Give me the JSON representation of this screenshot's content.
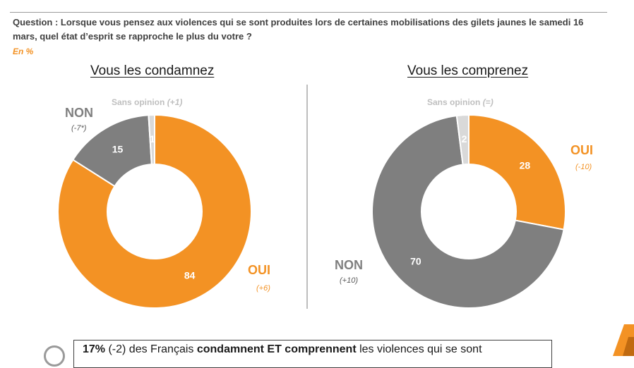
{
  "question": "Question : Lorsque vous pensez aux violences qui se sont produites lors de certaines mobilisations des gilets jaunes le samedi 16 mars, quel état d’esprit se rapproche le plus du votre ?",
  "unit": "En  %",
  "colors": {
    "oui": "#f39224",
    "non": "#7f7f7f",
    "sans_opinion": "#d9d9d9",
    "accent": "#f39224"
  },
  "chart_data": [
    {
      "type": "pie",
      "title": "Vous les condamnez",
      "categories": [
        "OUI",
        "NON",
        "Sans opinion"
      ],
      "values": [
        84,
        15,
        1
      ],
      "changes": [
        "(+6)",
        "(-7*)",
        "(+1)"
      ]
    },
    {
      "type": "pie",
      "title": "Vous les comprenez",
      "categories": [
        "OUI",
        "NON",
        "Sans opinion"
      ],
      "values": [
        28,
        70,
        2
      ],
      "changes": [
        "(-10)",
        "(+10)",
        "(=)"
      ]
    }
  ],
  "conclusion": {
    "pct": "17%",
    "change": " (-2) des Français ",
    "bold": "condamnent ET comprennent",
    "rest": " les violences qui se sont"
  }
}
